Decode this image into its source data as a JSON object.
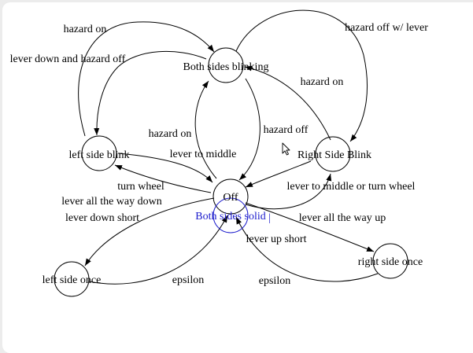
{
  "colors": {
    "stroke": "#000000",
    "selected": "#1a1acc",
    "background": "#ffffff"
  },
  "states": {
    "both_blinking": "Both sides blinking",
    "left_blink": "left side blink",
    "right_blink": "Right Side Blink",
    "off": "Off",
    "both_solid": "Both sides solid",
    "left_once": "left side once",
    "right_once": "right side once"
  },
  "transitions": {
    "hazard_on_top": "hazard on",
    "lever_down_hazard_off": "lever down and hazard off",
    "hazard_off_lever": "hazard off w/ lever",
    "hazard_on_right": "hazard on",
    "hazard_on_center": "hazard on",
    "hazard_off_center": "hazard off",
    "lever_to_middle": "lever to middle",
    "turn_wheel": "turn wheel",
    "lever_all_down": "lever all the way down",
    "lever_down_short": "lever down short",
    "lever_middle_or_wheel": "lever to middle or turn wheel",
    "lever_all_up": "lever all the way up",
    "lever_up_short": "lever up short",
    "epsilon_left": "epsilon",
    "epsilon_right": "epsilon"
  },
  "cursor": "arrow-cursor-icon"
}
